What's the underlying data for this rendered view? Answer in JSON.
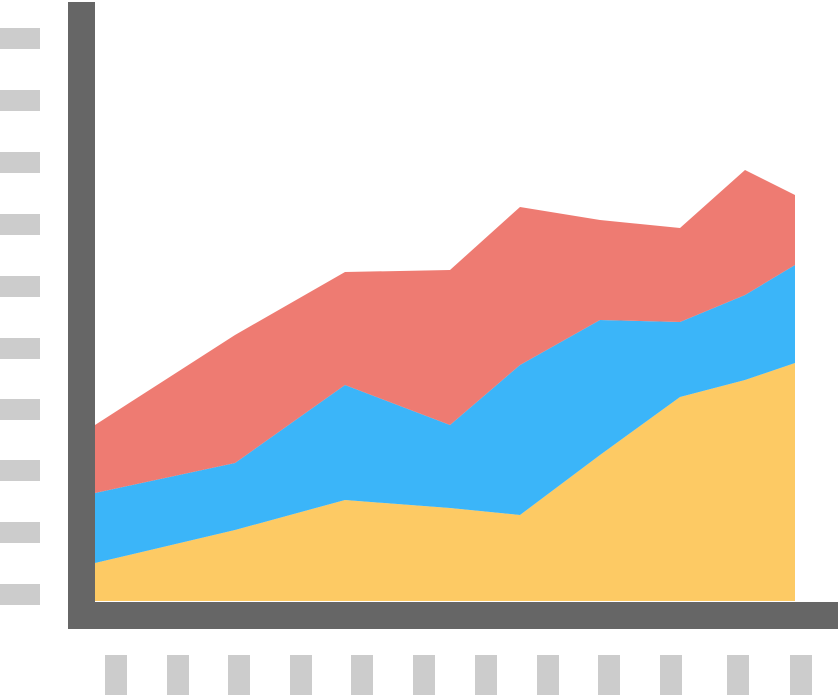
{
  "chart_data": {
    "type": "stacked-area",
    "x": [
      0,
      140,
      250,
      355,
      425,
      505,
      585,
      650,
      700
    ],
    "xlim": [
      0,
      700
    ],
    "ylim": [
      0,
      600
    ],
    "series": [
      {
        "color": "#fdca64",
        "values": [
          38,
          71,
          101,
          93,
          86,
          146,
          204,
          221,
          238
        ]
      },
      {
        "color": "#3bb5f9",
        "values": [
          70,
          67,
          115,
          83,
          150,
          135,
          75,
          85,
          98
        ]
      },
      {
        "color": "#ee7b72",
        "values": [
          68,
          128,
          113,
          155,
          158,
          100,
          94,
          125,
          70
        ]
      }
    ]
  }
}
